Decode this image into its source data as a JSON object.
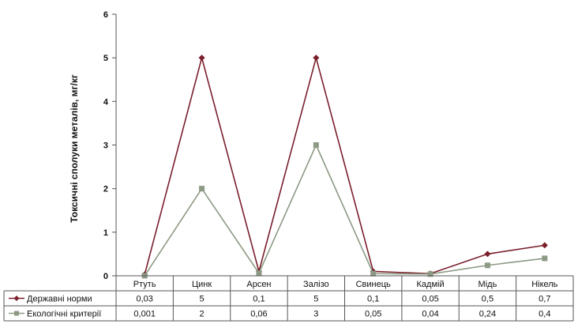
{
  "chart_data": {
    "type": "line",
    "ylabel": "Токсичні сполуки металів, мг/кг",
    "xlabel": "",
    "ylim": [
      0,
      6
    ],
    "yticks": [
      "0",
      "1",
      "2",
      "3",
      "4",
      "5",
      "6"
    ],
    "grid": false,
    "legend_placement": "data-table-left",
    "categories": [
      "Ртуть",
      "Цинк",
      "Арсен",
      "Залізо",
      "Свинець",
      "Кадмій",
      "Мідь",
      "Нікель"
    ],
    "series": [
      {
        "name": "Державні норми",
        "color": "#7a1f2b",
        "marker": "diamond",
        "values": [
          0.03,
          5,
          0.1,
          5,
          0.1,
          0.05,
          0.5,
          0.7
        ],
        "labels": [
          "0,03",
          "5",
          "0,1",
          "5",
          "0,1",
          "0,05",
          "0,5",
          "0,7"
        ]
      },
      {
        "name": "Екологічні критерії",
        "color": "#8c9a84",
        "marker": "square",
        "values": [
          0.001,
          2,
          0.06,
          3,
          0.05,
          0.04,
          0.24,
          0.4
        ],
        "labels": [
          "0,001",
          "2",
          "0,06",
          "3",
          "0,05",
          "0,04",
          "0,24",
          "0,4"
        ]
      }
    ]
  }
}
